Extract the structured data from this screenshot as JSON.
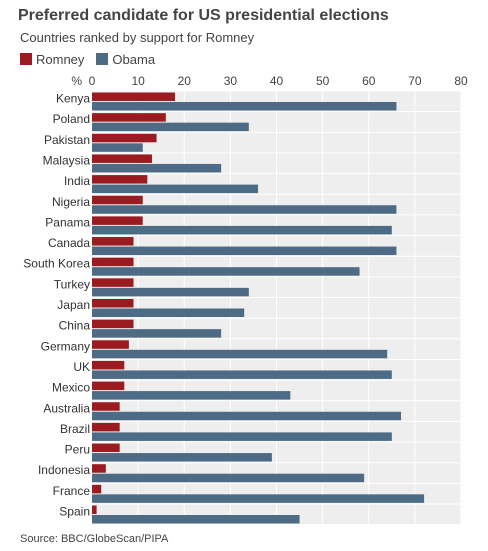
{
  "header": {
    "title": "Preferred candidate for US presidential elections",
    "subtitle": "Countries ranked by support for Romney"
  },
  "legend": {
    "items": [
      {
        "label": "Romney",
        "color": "#9b1c20"
      },
      {
        "label": "Obama",
        "color": "#4d6b85"
      }
    ]
  },
  "footer": {
    "source": "Source: BBC/GlobeScan/PIPA"
  },
  "chart_data": {
    "type": "bar",
    "orientation": "horizontal",
    "title": "Preferred candidate for US presidential elections",
    "subtitle": "Countries ranked by support for Romney",
    "axis_unit": "%",
    "xlim": [
      0,
      80
    ],
    "xticks": [
      0,
      10,
      20,
      30,
      40,
      50,
      60,
      70,
      80
    ],
    "grid": true,
    "legend_position": "top-left",
    "categories": [
      "Kenya",
      "Poland",
      "Pakistan",
      "Malaysia",
      "India",
      "Nigeria",
      "Panama",
      "Canada",
      "South Korea",
      "Turkey",
      "Japan",
      "China",
      "Germany",
      "UK",
      "Mexico",
      "Australia",
      "Brazil",
      "Peru",
      "Indonesia",
      "France",
      "Spain"
    ],
    "series": [
      {
        "name": "Romney",
        "color": "#9b1c20",
        "values": [
          18,
          16,
          14,
          13,
          12,
          11,
          11,
          9,
          9,
          9,
          9,
          9,
          8,
          7,
          7,
          6,
          6,
          6,
          3,
          2,
          1
        ]
      },
      {
        "name": "Obama",
        "color": "#4d6b85",
        "values": [
          66,
          34,
          11,
          28,
          36,
          66,
          65,
          66,
          58,
          34,
          33,
          28,
          64,
          65,
          43,
          67,
          65,
          39,
          59,
          72,
          45
        ]
      }
    ]
  }
}
